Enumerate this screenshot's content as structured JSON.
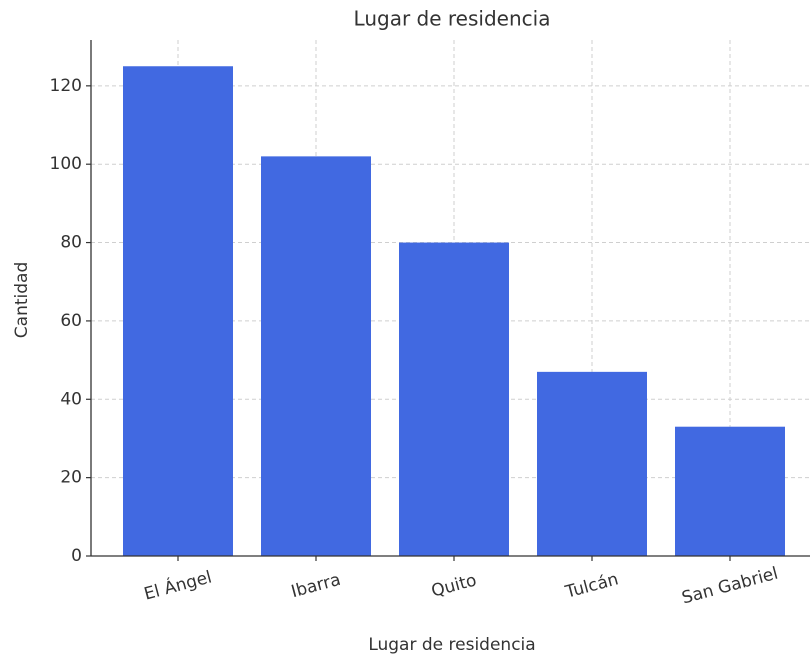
{
  "chart_data": {
    "type": "bar",
    "title": "Lugar de residencia",
    "x_label": "Lugar de residencia",
    "y_label": "Cantidad",
    "categories": [
      "El Ángel",
      "Ibarra",
      "Quito",
      "Tulcán",
      "San Gabriel"
    ],
    "values": [
      125,
      102,
      80,
      47,
      33
    ],
    "color": "#4169e1",
    "ylim": [
      0,
      131.7
    ],
    "yticks": [
      0,
      20,
      40,
      60,
      80,
      100,
      120
    ],
    "grid": true
  }
}
